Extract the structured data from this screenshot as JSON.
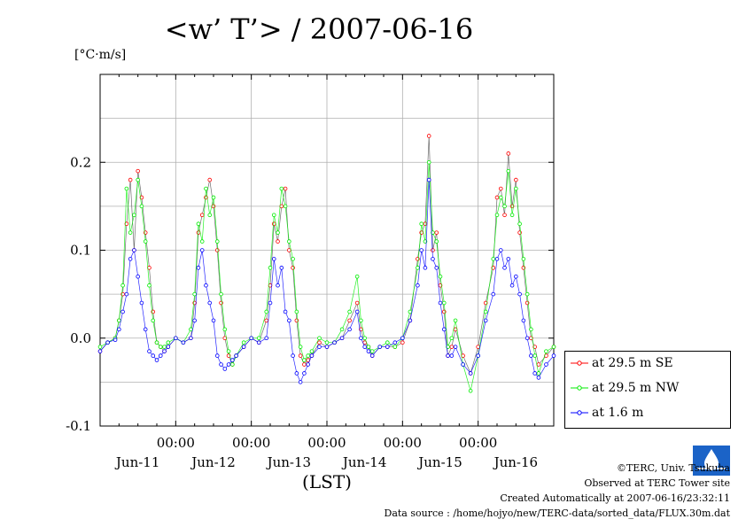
{
  "chart_data": {
    "type": "line",
    "title": "<w’ T’> / 2007-06-16",
    "ylabel": "[°C·m/s]",
    "xlabel": "(LST)",
    "ylim": [
      -0.1,
      0.3
    ],
    "yticks": [
      -0.1,
      0.0,
      0.1,
      0.2
    ],
    "ytick_labels": [
      "-0.1",
      "0.0",
      "0.1",
      "0.2"
    ],
    "xlim_days": [
      0,
      6
    ],
    "xticks_days": [
      1,
      2,
      3,
      4,
      5
    ],
    "xtick_time_labels": [
      "00:00",
      "00:00",
      "00:00",
      "00:00",
      "00:00"
    ],
    "day_labels": [
      "Jun-11",
      "Jun-12",
      "Jun-13",
      "Jun-14",
      "Jun-15",
      "Jun-16"
    ],
    "grid": true,
    "legend_position": "right",
    "series": [
      {
        "name": "at 29.5 m SE",
        "color": "#ff0000",
        "x": [
          0.0,
          0.1,
          0.2,
          0.25,
          0.3,
          0.35,
          0.4,
          0.45,
          0.5,
          0.55,
          0.6,
          0.65,
          0.7,
          0.75,
          0.8,
          0.85,
          0.9,
          1.0,
          1.1,
          1.2,
          1.25,
          1.3,
          1.35,
          1.4,
          1.45,
          1.5,
          1.55,
          1.6,
          1.65,
          1.7,
          1.75,
          1.8,
          1.9,
          2.0,
          2.1,
          2.2,
          2.25,
          2.3,
          2.35,
          2.4,
          2.45,
          2.5,
          2.55,
          2.6,
          2.65,
          2.7,
          2.75,
          2.8,
          2.9,
          3.0,
          3.1,
          3.2,
          3.3,
          3.4,
          3.45,
          3.5,
          3.55,
          3.6,
          3.7,
          3.8,
          3.9,
          4.0,
          4.1,
          4.2,
          4.25,
          4.3,
          4.35,
          4.4,
          4.45,
          4.5,
          4.55,
          4.6,
          4.65,
          4.7,
          4.8,
          4.9,
          5.0,
          5.1,
          5.2,
          5.25,
          5.3,
          5.35,
          5.4,
          5.45,
          5.5,
          5.55,
          5.6,
          5.65,
          5.7,
          5.75,
          5.8,
          5.9,
          6.0
        ],
        "y": [
          -0.015,
          -0.005,
          0.0,
          0.02,
          0.05,
          0.13,
          0.18,
          0.1,
          0.19,
          0.16,
          0.12,
          0.08,
          0.03,
          -0.005,
          -0.01,
          -0.015,
          -0.01,
          0.0,
          -0.005,
          0.0,
          0.04,
          0.12,
          0.14,
          0.16,
          0.18,
          0.15,
          0.1,
          0.04,
          0.0,
          -0.02,
          -0.03,
          -0.02,
          -0.01,
          0.0,
          -0.005,
          0.02,
          0.06,
          0.13,
          0.11,
          0.15,
          0.17,
          0.1,
          0.08,
          0.02,
          -0.02,
          -0.03,
          -0.025,
          -0.02,
          -0.005,
          -0.01,
          -0.005,
          0.0,
          0.02,
          0.04,
          0.01,
          -0.005,
          -0.01,
          -0.02,
          -0.01,
          -0.01,
          -0.01,
          -0.005,
          0.02,
          0.09,
          0.12,
          0.13,
          0.23,
          0.1,
          0.12,
          0.06,
          0.03,
          -0.02,
          -0.01,
          0.01,
          -0.02,
          -0.04,
          -0.01,
          0.04,
          0.08,
          0.16,
          0.17,
          0.14,
          0.21,
          0.15,
          0.18,
          0.12,
          0.08,
          0.04,
          0.0,
          -0.01,
          -0.03,
          -0.02,
          -0.01
        ]
      },
      {
        "name": "at 29.5 m NW",
        "color": "#00ee00",
        "x": [
          0.0,
          0.1,
          0.2,
          0.25,
          0.3,
          0.35,
          0.4,
          0.45,
          0.5,
          0.55,
          0.6,
          0.65,
          0.7,
          0.75,
          0.8,
          0.85,
          0.9,
          1.0,
          1.1,
          1.2,
          1.25,
          1.3,
          1.35,
          1.4,
          1.45,
          1.5,
          1.55,
          1.6,
          1.65,
          1.7,
          1.75,
          1.8,
          1.9,
          2.0,
          2.1,
          2.2,
          2.25,
          2.3,
          2.35,
          2.4,
          2.45,
          2.5,
          2.55,
          2.6,
          2.65,
          2.7,
          2.75,
          2.8,
          2.9,
          3.0,
          3.1,
          3.2,
          3.3,
          3.4,
          3.45,
          3.5,
          3.55,
          3.6,
          3.7,
          3.8,
          3.9,
          4.0,
          4.1,
          4.2,
          4.25,
          4.3,
          4.35,
          4.4,
          4.45,
          4.5,
          4.55,
          4.6,
          4.65,
          4.7,
          4.8,
          4.9,
          5.0,
          5.1,
          5.2,
          5.25,
          5.3,
          5.35,
          5.4,
          5.45,
          5.5,
          5.55,
          5.6,
          5.65,
          5.7,
          5.75,
          5.8,
          5.9,
          6.0
        ],
        "y": [
          -0.01,
          -0.005,
          0.0,
          0.02,
          0.06,
          0.17,
          0.12,
          0.14,
          0.18,
          0.15,
          0.11,
          0.06,
          0.02,
          -0.005,
          -0.01,
          -0.01,
          -0.005,
          0.0,
          -0.005,
          0.01,
          0.05,
          0.13,
          0.11,
          0.17,
          0.14,
          0.16,
          0.11,
          0.05,
          0.01,
          -0.015,
          -0.03,
          -0.02,
          -0.005,
          0.0,
          0.0,
          0.03,
          0.08,
          0.14,
          0.12,
          0.17,
          0.15,
          0.11,
          0.09,
          0.03,
          -0.01,
          -0.025,
          -0.02,
          -0.015,
          0.0,
          -0.005,
          -0.005,
          0.01,
          0.03,
          0.07,
          0.02,
          0.0,
          -0.01,
          -0.015,
          -0.01,
          -0.005,
          -0.01,
          0.0,
          0.03,
          0.08,
          0.13,
          0.11,
          0.2,
          0.12,
          0.11,
          0.07,
          0.04,
          -0.01,
          0.0,
          0.02,
          -0.03,
          -0.06,
          -0.02,
          0.03,
          0.09,
          0.14,
          0.16,
          0.15,
          0.19,
          0.14,
          0.17,
          0.13,
          0.09,
          0.05,
          0.01,
          -0.02,
          -0.04,
          -0.015,
          -0.01
        ]
      },
      {
        "name": "at 1.6 m",
        "color": "#0000ff",
        "x": [
          0.0,
          0.1,
          0.2,
          0.25,
          0.3,
          0.35,
          0.4,
          0.45,
          0.5,
          0.55,
          0.6,
          0.65,
          0.7,
          0.75,
          0.8,
          0.85,
          0.9,
          1.0,
          1.1,
          1.2,
          1.25,
          1.3,
          1.35,
          1.4,
          1.45,
          1.5,
          1.55,
          1.6,
          1.65,
          1.7,
          1.75,
          1.8,
          1.9,
          2.0,
          2.1,
          2.2,
          2.25,
          2.3,
          2.35,
          2.4,
          2.45,
          2.5,
          2.55,
          2.6,
          2.65,
          2.7,
          2.75,
          2.8,
          2.9,
          3.0,
          3.1,
          3.2,
          3.3,
          3.4,
          3.45,
          3.5,
          3.55,
          3.6,
          3.7,
          3.8,
          3.9,
          4.0,
          4.1,
          4.2,
          4.25,
          4.3,
          4.35,
          4.4,
          4.45,
          4.5,
          4.55,
          4.6,
          4.65,
          4.7,
          4.8,
          4.9,
          5.0,
          5.1,
          5.2,
          5.25,
          5.3,
          5.35,
          5.4,
          5.45,
          5.5,
          5.55,
          5.6,
          5.65,
          5.7,
          5.75,
          5.8,
          5.9,
          6.0
        ],
        "y": [
          -0.015,
          -0.005,
          -0.002,
          0.01,
          0.03,
          0.05,
          0.09,
          0.1,
          0.07,
          0.04,
          0.01,
          -0.015,
          -0.02,
          -0.025,
          -0.02,
          -0.015,
          -0.01,
          0.0,
          -0.005,
          0.0,
          0.02,
          0.08,
          0.1,
          0.06,
          0.04,
          0.02,
          -0.02,
          -0.03,
          -0.035,
          -0.03,
          -0.025,
          -0.02,
          -0.01,
          0.0,
          -0.005,
          0.0,
          0.04,
          0.09,
          0.06,
          0.08,
          0.03,
          0.02,
          -0.02,
          -0.04,
          -0.05,
          -0.04,
          -0.03,
          -0.02,
          -0.01,
          -0.01,
          -0.005,
          0.0,
          0.01,
          0.03,
          0.0,
          -0.01,
          -0.015,
          -0.02,
          -0.01,
          -0.01,
          -0.005,
          0.0,
          0.02,
          0.06,
          0.1,
          0.08,
          0.18,
          0.09,
          0.08,
          0.04,
          0.01,
          -0.02,
          -0.02,
          -0.01,
          -0.03,
          -0.04,
          -0.02,
          0.02,
          0.05,
          0.09,
          0.1,
          0.08,
          0.09,
          0.06,
          0.07,
          0.05,
          0.02,
          0.0,
          -0.02,
          -0.04,
          -0.045,
          -0.03,
          -0.02
        ]
      }
    ]
  },
  "footer": {
    "copyright": "©TERC, Univ. Tsukuba",
    "observed": "Observed at TERC Tower site",
    "created": "Created Automatically at 2007-06-16/23:32:11",
    "source": "Data source : /home/hojyo/new/TERC-data/sorted_data/FLUX.30m.dat"
  }
}
